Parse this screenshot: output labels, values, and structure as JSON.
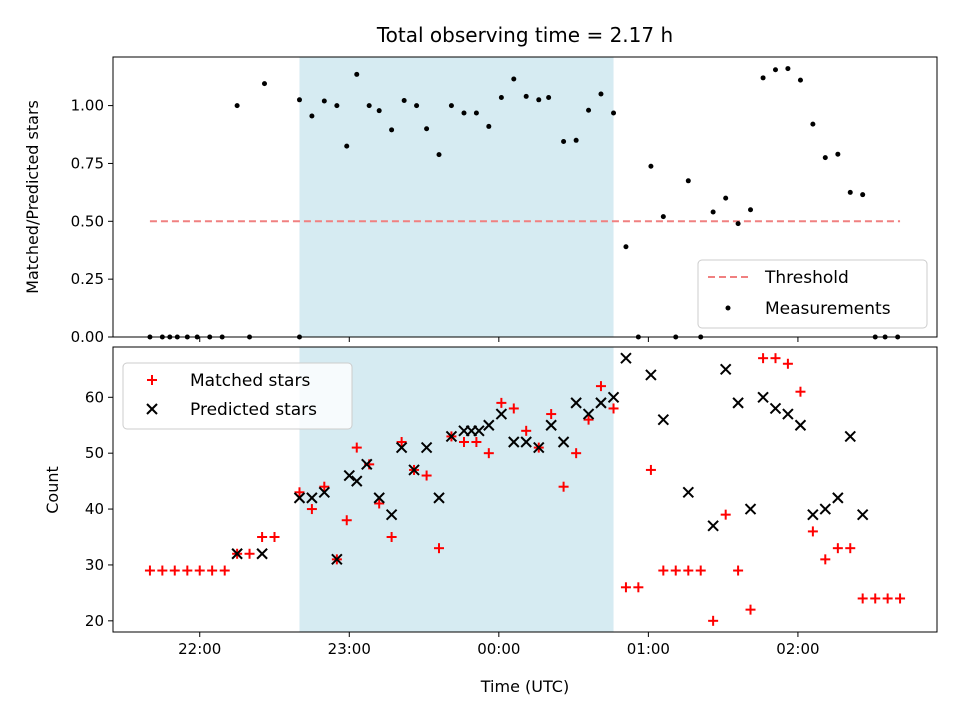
{
  "chart_data": [
    {
      "type": "scatter",
      "title": "Total observing time = 2.17 h",
      "xlabel": "",
      "ylabel": "Matched/Predicted stars",
      "ylim": [
        0,
        1.21
      ],
      "yticks": [
        "0.00",
        "0.25",
        "0.50",
        "0.75",
        "1.00"
      ],
      "yticks_values": [
        0,
        0.25,
        0.5,
        0.75,
        1.0
      ],
      "grid": false,
      "legend_position": "bottom-right",
      "threshold": {
        "name": "Threshold",
        "value": 0.5,
        "x_start": 21.667,
        "x_end": 26.683,
        "color": "#f08080"
      },
      "series": [
        {
          "name": "Measurements",
          "color": "#000000",
          "points": [
            [
              21.667,
              0.0
            ],
            [
              21.75,
              0.0
            ],
            [
              21.8,
              0.0
            ],
            [
              21.85,
              0.0
            ],
            [
              21.917,
              0.0
            ],
            [
              21.983,
              0.0
            ],
            [
              22.067,
              0.0
            ],
            [
              22.15,
              0.0
            ],
            [
              22.25,
              1.0
            ],
            [
              22.333,
              0.0
            ],
            [
              22.433,
              1.095
            ],
            [
              22.667,
              0.0
            ],
            [
              22.667,
              1.025
            ],
            [
              22.75,
              0.955
            ],
            [
              22.833,
              1.02
            ],
            [
              22.917,
              1.0
            ],
            [
              22.983,
              0.825
            ],
            [
              23.05,
              1.135
            ],
            [
              23.133,
              1.0
            ],
            [
              23.2,
              0.978
            ],
            [
              23.283,
              0.895
            ],
            [
              23.367,
              1.022
            ],
            [
              23.45,
              1.0
            ],
            [
              23.517,
              0.9
            ],
            [
              23.6,
              0.788
            ],
            [
              23.683,
              1.0
            ],
            [
              23.767,
              0.968
            ],
            [
              23.85,
              0.968
            ],
            [
              23.933,
              0.91
            ],
            [
              24.017,
              1.035
            ],
            [
              24.1,
              1.115
            ],
            [
              24.183,
              1.04
            ],
            [
              24.267,
              1.025
            ],
            [
              24.333,
              1.035
            ],
            [
              24.433,
              0.845
            ],
            [
              24.517,
              0.85
            ],
            [
              24.6,
              0.98
            ],
            [
              24.683,
              1.05
            ],
            [
              24.767,
              0.968
            ],
            [
              24.85,
              0.39
            ],
            [
              24.933,
              0.0
            ],
            [
              25.017,
              0.738
            ],
            [
              25.1,
              0.52
            ],
            [
              25.183,
              0.0
            ],
            [
              25.267,
              0.675
            ],
            [
              25.35,
              0.0
            ],
            [
              25.433,
              0.54
            ],
            [
              25.517,
              0.6
            ],
            [
              25.6,
              0.49
            ],
            [
              25.683,
              0.55
            ],
            [
              25.767,
              1.12
            ],
            [
              25.85,
              1.155
            ],
            [
              25.933,
              1.16
            ],
            [
              26.017,
              1.11
            ],
            [
              26.1,
              0.92
            ],
            [
              26.183,
              0.775
            ],
            [
              26.267,
              0.79
            ],
            [
              26.35,
              0.625
            ],
            [
              26.433,
              0.615
            ],
            [
              26.517,
              0.0
            ],
            [
              26.583,
              0.0
            ],
            [
              26.667,
              0.0
            ]
          ]
        }
      ]
    },
    {
      "type": "scatter",
      "title": "",
      "xlabel": "Time (UTC)",
      "ylabel": "Count",
      "ylim": [
        18,
        69
      ],
      "yticks": [
        "20",
        "30",
        "40",
        "50",
        "60"
      ],
      "yticks_values": [
        20,
        30,
        40,
        50,
        60
      ],
      "xticks": [
        "22:00",
        "23:00",
        "00:00",
        "01:00",
        "02:00"
      ],
      "xticks_values": [
        22,
        23,
        24,
        25,
        26
      ],
      "grid": false,
      "legend_position": "top-left",
      "series": [
        {
          "name": "Matched stars",
          "marker": "plus",
          "color": "#ff0000",
          "points": [
            [
              21.667,
              29
            ],
            [
              21.75,
              29
            ],
            [
              21.833,
              29
            ],
            [
              21.917,
              29
            ],
            [
              22.0,
              29
            ],
            [
              22.083,
              29
            ],
            [
              22.167,
              29
            ],
            [
              22.25,
              32
            ],
            [
              22.333,
              32
            ],
            [
              22.417,
              35
            ],
            [
              22.5,
              35
            ],
            [
              22.667,
              43
            ],
            [
              22.75,
              40
            ],
            [
              22.833,
              44
            ],
            [
              22.917,
              31
            ],
            [
              22.983,
              38
            ],
            [
              23.05,
              51
            ],
            [
              23.133,
              48
            ],
            [
              23.2,
              41
            ],
            [
              23.283,
              35
            ],
            [
              23.35,
              52
            ],
            [
              23.433,
              47
            ],
            [
              23.517,
              46
            ],
            [
              23.6,
              33
            ],
            [
              23.683,
              53
            ],
            [
              23.767,
              52
            ],
            [
              23.85,
              52
            ],
            [
              23.933,
              50
            ],
            [
              24.017,
              59
            ],
            [
              24.1,
              58
            ],
            [
              24.183,
              54
            ],
            [
              24.267,
              51
            ],
            [
              24.35,
              57
            ],
            [
              24.433,
              44
            ],
            [
              24.517,
              50
            ],
            [
              24.6,
              56
            ],
            [
              24.683,
              62
            ],
            [
              24.767,
              58
            ],
            [
              24.85,
              26
            ],
            [
              24.933,
              26
            ],
            [
              25.017,
              47
            ],
            [
              25.1,
              29
            ],
            [
              25.183,
              29
            ],
            [
              25.267,
              29
            ],
            [
              25.35,
              29
            ],
            [
              25.433,
              20
            ],
            [
              25.517,
              39
            ],
            [
              25.6,
              29
            ],
            [
              25.683,
              22
            ],
            [
              25.767,
              67
            ],
            [
              25.85,
              67
            ],
            [
              25.933,
              66
            ],
            [
              26.017,
              61
            ],
            [
              26.1,
              36
            ],
            [
              26.183,
              31
            ],
            [
              26.267,
              33
            ],
            [
              26.35,
              33
            ],
            [
              26.433,
              24
            ],
            [
              26.517,
              24
            ],
            [
              26.6,
              24
            ],
            [
              26.683,
              24
            ]
          ]
        },
        {
          "name": "Predicted stars",
          "marker": "x",
          "color": "#000000",
          "points": [
            [
              22.25,
              32
            ],
            [
              22.417,
              32
            ],
            [
              22.667,
              42
            ],
            [
              22.75,
              42
            ],
            [
              22.833,
              43
            ],
            [
              22.917,
              31
            ],
            [
              23.0,
              46
            ],
            [
              23.05,
              45
            ],
            [
              23.117,
              48
            ],
            [
              23.2,
              42
            ],
            [
              23.283,
              39
            ],
            [
              23.35,
              51
            ],
            [
              23.433,
              47
            ],
            [
              23.517,
              51
            ],
            [
              23.6,
              42
            ],
            [
              23.683,
              53
            ],
            [
              23.767,
              54
            ],
            [
              23.817,
              54
            ],
            [
              23.867,
              54
            ],
            [
              23.933,
              55
            ],
            [
              24.017,
              57
            ],
            [
              24.1,
              52
            ],
            [
              24.183,
              52
            ],
            [
              24.267,
              51
            ],
            [
              24.35,
              55
            ],
            [
              24.433,
              52
            ],
            [
              24.517,
              59
            ],
            [
              24.6,
              57
            ],
            [
              24.683,
              59
            ],
            [
              24.767,
              60
            ],
            [
              24.85,
              67
            ],
            [
              25.017,
              64
            ],
            [
              25.1,
              56
            ],
            [
              25.267,
              43
            ],
            [
              25.433,
              37
            ],
            [
              25.517,
              65
            ],
            [
              25.6,
              59
            ],
            [
              25.683,
              40
            ],
            [
              25.767,
              60
            ],
            [
              25.85,
              58
            ],
            [
              25.933,
              57
            ],
            [
              26.017,
              55
            ],
            [
              26.1,
              39
            ],
            [
              26.183,
              40
            ],
            [
              26.267,
              42
            ],
            [
              26.35,
              53
            ],
            [
              26.433,
              39
            ]
          ]
        }
      ]
    }
  ],
  "observing_window": {
    "start": 22.667,
    "end": 24.767,
    "color": "#add8e6"
  },
  "x_range": [
    21.42,
    26.93
  ]
}
